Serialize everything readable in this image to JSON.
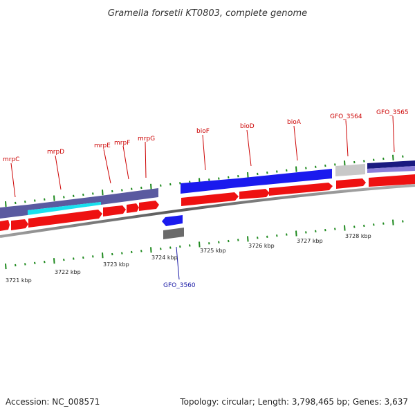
{
  "title": "Gramella forsetii KT0803, complete genome",
  "colors": {
    "background": "#ffffff",
    "backbone": "#8a8a8a",
    "forward_cds": "#ee1111",
    "reverse_cds": "#1a1aee",
    "label_forward": "#cc0000",
    "label_reverse": "#1a1aa6",
    "tick": "#1f8a1f",
    "cog_slate": "#5a5aa0",
    "cog_cyan": "#19e0ee",
    "cog_blue": "#1a1aee",
    "cog_navy": "#1a1a80",
    "cog_grey": "#c8c8c8",
    "cog_darkgrey": "#6a6a6a"
  },
  "gene_labels": [
    {
      "name": "mrpC",
      "strand": "forward"
    },
    {
      "name": "mrpD",
      "strand": "forward"
    },
    {
      "name": "mrpE",
      "strand": "forward"
    },
    {
      "name": "mrpF",
      "strand": "forward"
    },
    {
      "name": "mrpG",
      "strand": "forward"
    },
    {
      "name": "bioF",
      "strand": "forward"
    },
    {
      "name": "bioD",
      "strand": "forward"
    },
    {
      "name": "bioA",
      "strand": "forward"
    },
    {
      "name": "GFO_3564",
      "strand": "forward"
    },
    {
      "name": "GFO_3565",
      "strand": "forward"
    },
    {
      "name": "GFO_3560",
      "strand": "reverse"
    }
  ],
  "scale_labels": [
    "3721 kbp",
    "3722 kbp",
    "3723 kbp",
    "3724 kbp",
    "3725 kbp",
    "3726 kbp",
    "3727 kbp",
    "3728 kbp"
  ],
  "footer": {
    "accession": "Accession: NC_008571",
    "summary": "Topology: circular; Length: 3,798,465 bp; Genes: 3,637"
  }
}
